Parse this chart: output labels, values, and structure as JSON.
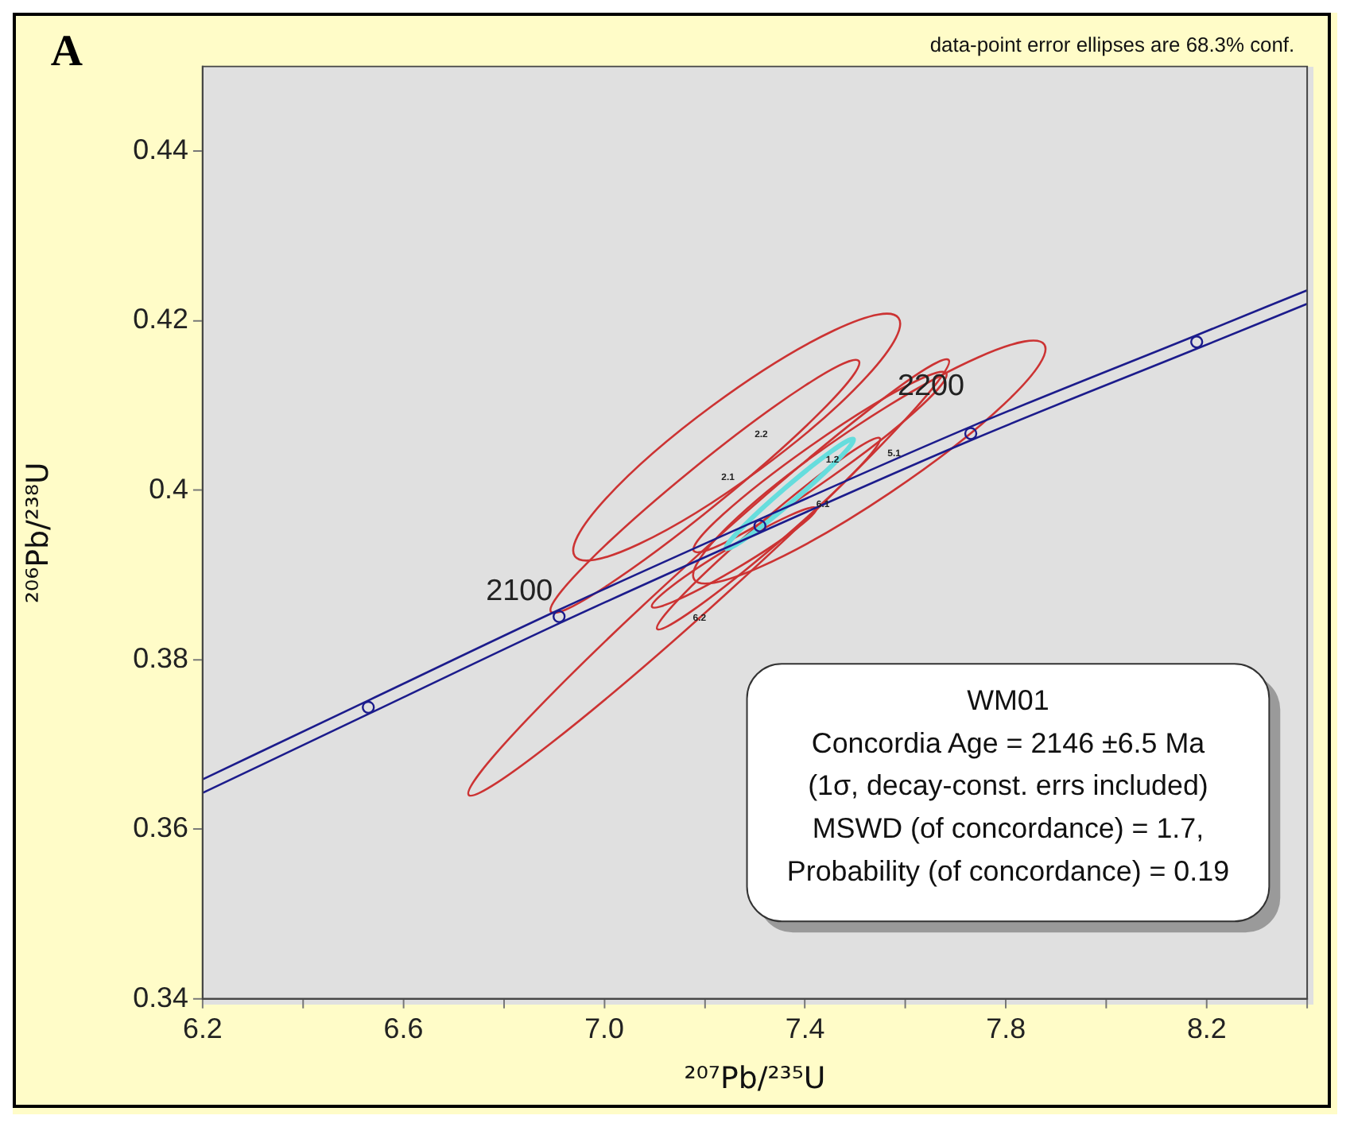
{
  "chart_data": {
    "type": "line",
    "xlabel": "²⁰⁷Pb/²³⁵U",
    "ylabel": "²⁰⁶Pb/²³⁸U",
    "xlim": [
      6.2,
      8.4
    ],
    "ylim": [
      0.34,
      0.45
    ],
    "xticks": [
      6.2,
      {
        "value": 6.4,
        "label": null
      },
      6.6,
      {
        "value": 6.8,
        "label": null
      },
      {
        "value": 7.0,
        "label": "7.0"
      },
      {
        "value": 7.2,
        "label": null
      },
      7.4,
      {
        "value": 7.6,
        "label": null
      },
      7.8,
      {
        "value": 8.0,
        "label": null
      },
      8.2,
      {
        "value": 8.4,
        "label": null
      }
    ],
    "yticks": [
      0.34,
      0.36,
      0.38,
      0.4,
      0.42,
      0.44
    ],
    "grid": false,
    "legend": false,
    "marker": "none",
    "series": [
      {
        "type": "line",
        "color": "#1c1c8c",
        "x": [
          6.2,
          6.53,
          6.91,
          7.31,
          7.73,
          8.18,
          8.4
        ],
        "values": [
          0.3659,
          0.3752,
          0.3859,
          0.3966,
          0.4075,
          0.4183,
          0.4236
        ]
      },
      {
        "type": "line",
        "color": "#1c1c8c",
        "x": [
          6.2,
          6.53,
          6.91,
          7.31,
          7.73,
          8.18,
          8.4
        ],
        "values": [
          0.3643,
          0.3736,
          0.3843,
          0.395,
          0.4059,
          0.4167,
          0.422
        ]
      },
      {
        "type": "scatter",
        "marker": "circle",
        "color": "#1c1c8c",
        "x": [
          6.53,
          6.91,
          7.31,
          7.73,
          8.18
        ],
        "values": [
          0.3744,
          0.3851,
          0.3958,
          0.4067,
          0.4175
        ]
      }
    ],
    "annotations": [
      "A",
      "data-point error ellipses are 68.3% conf.",
      "WM01",
      "Concordia Age = 2146 ±6.5 Ma",
      "(1σ, decay-const. errs included)",
      "MSWD (of concordance) = 1.7,",
      "Probability (of concordance) = 0.19",
      {
        "text": "2100",
        "x": 6.91,
        "y": 0.3851
      },
      {
        "text": "2200",
        "x": 7.73,
        "y": 0.4067
      },
      "2.2",
      "2.1",
      "1.2",
      "5.1",
      "6.1",
      "6.2"
    ]
  }
}
